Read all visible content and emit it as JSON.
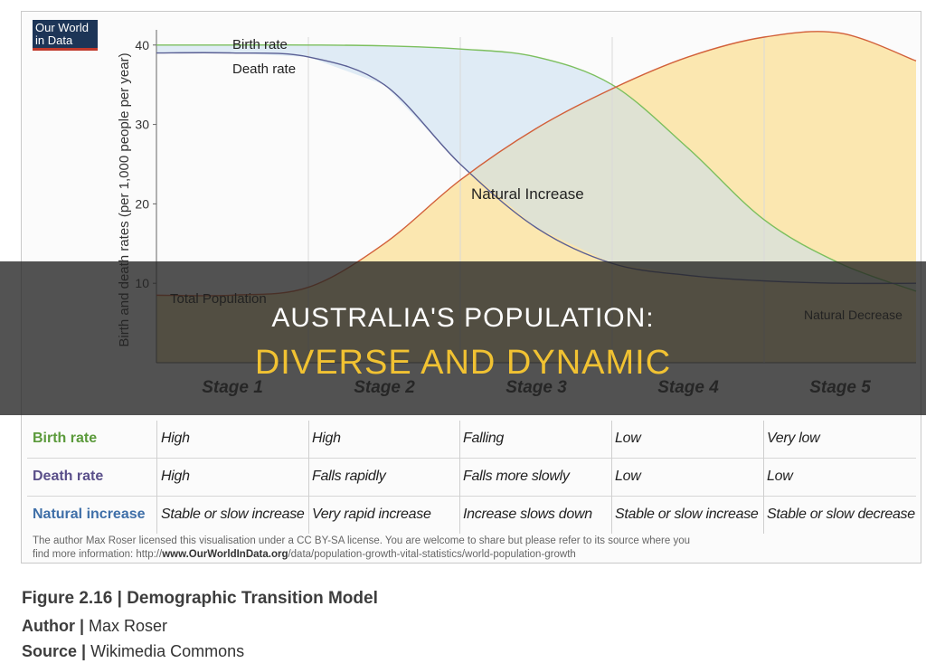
{
  "logo": {
    "line1": "Our World",
    "line2": "in Data"
  },
  "chart_data": {
    "type": "line",
    "ylabel": "Birth and death rates (per 1,000 people per year)",
    "ylim": [
      0,
      41
    ],
    "yticks": [
      10,
      20,
      30,
      40
    ],
    "x": [
      0,
      0.5,
      1,
      1.5,
      2,
      2.5,
      3,
      3.5,
      4,
      4.5,
      5
    ],
    "series": [
      {
        "name": "Birth rate",
        "color": "#7cbf5e",
        "values": [
          40,
          40,
          40,
          39.9,
          39.5,
          38.5,
          35,
          27,
          18,
          12.5,
          9
        ]
      },
      {
        "name": "Death rate",
        "color": "#5a5f94",
        "values": [
          39,
          39,
          38.5,
          35,
          25,
          17,
          12.5,
          11,
          10.3,
          10,
          10
        ]
      },
      {
        "name": "Total Population",
        "color": "#d2603a",
        "values": [
          8.5,
          8.5,
          9.5,
          15,
          23,
          29.5,
          34.5,
          38.5,
          41,
          41.5,
          38
        ]
      }
    ],
    "stage_boundaries": [
      1,
      2,
      3,
      4
    ],
    "annotations": [
      "Natural Increase",
      "Natural Decrease"
    ],
    "stages": [
      "Stage 1",
      "Stage 2",
      "Stage 3",
      "Stage 4",
      "Stage 5"
    ]
  },
  "table": {
    "rows": [
      {
        "label": "Birth rate",
        "color": "#5b9a3b",
        "cells": [
          "High",
          "High",
          "Falling",
          "Low",
          "Very low"
        ]
      },
      {
        "label": "Death rate",
        "color": "#5a4f8a",
        "cells": [
          "High",
          "Falls rapidly",
          "Falls more slowly",
          "Low",
          "Low"
        ]
      },
      {
        "label": "Natural increase",
        "color": "#3f6fa8",
        "cells": [
          "Stable or slow increase",
          "Very rapid increase",
          "Increase slows down",
          "Stable or slow increase",
          "Stable or slow decrease"
        ]
      }
    ]
  },
  "license": {
    "text1": "The author Max Roser licensed this visualisation under a CC BY-SA license. You are welcome to share but please refer to its source where you",
    "text2_prefix": "find more information: http://",
    "site": "www.OurWorldInData.org",
    "text2_suffix": "/data/population-growth-vital-statistics/world-population-growth"
  },
  "caption": {
    "figure_label": "Figure 2.16 |",
    "figure_title": " Demographic Transition Model",
    "author_label": "Author |",
    "author": " Max Roser",
    "source_label": "Source |",
    "source": " Wikimedia Commons"
  },
  "banner": {
    "line1": "AUSTRALIA'S POPULATION:",
    "line2": "DIVERSE AND DYNAMIC"
  }
}
